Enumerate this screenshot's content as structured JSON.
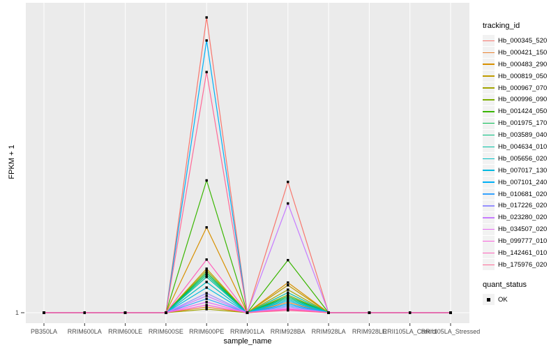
{
  "figure": {
    "panel_bg": "#EBEBEB",
    "grid_color": "#FFFFFF",
    "tick_color": "#333333",
    "axis_text_color": "#4D4D4D"
  },
  "legend": {
    "tracking_title": "tracking_id",
    "quant_title": "quant_status",
    "quant_items": [
      {
        "label": "OK",
        "shape": "filled-square",
        "color": "#000000"
      }
    ]
  },
  "chart_data": {
    "type": "line",
    "title": "",
    "xlabel": "sample_name",
    "ylabel": "FPKM + 1",
    "legend_position": "right",
    "grid": true,
    "y_ticks": [
      {
        "label": "1",
        "value": 0
      }
    ],
    "ylim": [
      0,
      1.05
    ],
    "units": "relative height (fraction of tallest peak; baseline = axis tick '1')",
    "categories": [
      "PB350LA",
      "RRIM600LA",
      "RRIM600LE",
      "RRIM600SE",
      "RRIM600PE",
      "RRIM901LA",
      "RRIM928BA",
      "RRIM928LA",
      "RRIM928LE",
      "RRII105LA_Control",
      "RRII105LA_Stressed"
    ],
    "point_marker": {
      "shape": "filled-square",
      "color": "#000000",
      "legend_label": "OK"
    },
    "series": [
      {
        "name": "Hb_000345_520",
        "color": "#F8766D",
        "values": [
          0,
          0,
          0,
          0,
          1.0,
          0,
          0.443,
          0,
          0,
          0,
          0
        ]
      },
      {
        "name": "Hb_000421_150",
        "color": "#EA8331",
        "values": [
          0,
          0,
          0,
          0,
          0.019,
          0,
          0.035,
          0,
          0,
          0,
          0
        ]
      },
      {
        "name": "Hb_000483_290",
        "color": "#D89000",
        "values": [
          0,
          0,
          0,
          0,
          0.289,
          0,
          0.102,
          0,
          0,
          0,
          0
        ]
      },
      {
        "name": "Hb_000819_050",
        "color": "#C09B00",
        "values": [
          0,
          0,
          0,
          0,
          0.149,
          0,
          0.093,
          0,
          0,
          0,
          0
        ]
      },
      {
        "name": "Hb_000967_070",
        "color": "#A3A500",
        "values": [
          0,
          0,
          0,
          0,
          0.012,
          0,
          0.078,
          0,
          0,
          0,
          0
        ]
      },
      {
        "name": "Hb_000996_090",
        "color": "#7CAE00",
        "values": [
          0,
          0,
          0,
          0,
          0.142,
          0,
          0.06,
          0,
          0,
          0,
          0
        ]
      },
      {
        "name": "Hb_001424_050",
        "color": "#39B600",
        "values": [
          0,
          0,
          0,
          0,
          0.448,
          0,
          0.178,
          0,
          0,
          0,
          0
        ]
      },
      {
        "name": "Hb_001975_170",
        "color": "#00BB4E",
        "values": [
          0,
          0,
          0,
          0,
          0.135,
          0,
          0.055,
          0,
          0,
          0,
          0
        ]
      },
      {
        "name": "Hb_003589_040",
        "color": "#00BF7D",
        "values": [
          0,
          0,
          0,
          0,
          0.128,
          0,
          0.05,
          0,
          0,
          0,
          0
        ]
      },
      {
        "name": "Hb_004634_010",
        "color": "#00C1A3",
        "values": [
          0,
          0,
          0,
          0,
          0.121,
          0,
          0.068,
          0,
          0,
          0,
          0
        ]
      },
      {
        "name": "Hb_005656_020",
        "color": "#00BFC4",
        "values": [
          0,
          0,
          0,
          0,
          0.104,
          0,
          0.045,
          0,
          0,
          0,
          0
        ]
      },
      {
        "name": "Hb_007017_130",
        "color": "#00BAE0",
        "values": [
          0,
          0,
          0,
          0,
          0.085,
          0,
          0.04,
          0,
          0,
          0,
          0
        ]
      },
      {
        "name": "Hb_007101_240",
        "color": "#00B0F6",
        "values": [
          0,
          0,
          0,
          0,
          0.922,
          0,
          0.03,
          0,
          0,
          0,
          0
        ]
      },
      {
        "name": "Hb_010681_020",
        "color": "#35A2FF",
        "values": [
          0,
          0,
          0,
          0,
          0.047,
          0,
          0.025,
          0,
          0,
          0,
          0
        ]
      },
      {
        "name": "Hb_017226_020",
        "color": "#9590FF",
        "values": [
          0,
          0,
          0,
          0,
          0.066,
          0,
          0.02,
          0,
          0,
          0,
          0
        ]
      },
      {
        "name": "Hb_023280_020",
        "color": "#C77CFF",
        "values": [
          0,
          0,
          0,
          0,
          0.057,
          0,
          0.37,
          0,
          0,
          0,
          0
        ]
      },
      {
        "name": "Hb_034507_020",
        "color": "#E76BF3",
        "values": [
          0,
          0,
          0,
          0,
          0.036,
          0,
          0.015,
          0,
          0,
          0,
          0
        ]
      },
      {
        "name": "Hb_099777_010",
        "color": "#FA62DB",
        "values": [
          0,
          0,
          0,
          0,
          0.026,
          0,
          0.01,
          0,
          0,
          0,
          0
        ]
      },
      {
        "name": "Hb_142461_010",
        "color": "#FF62BC",
        "values": [
          0,
          0,
          0,
          0,
          0.18,
          0,
          0.012,
          0,
          0,
          0,
          0
        ]
      },
      {
        "name": "Hb_175976_020",
        "color": "#FF6A98",
        "values": [
          0,
          0,
          0,
          0,
          0.815,
          0,
          0.008,
          0,
          0,
          0,
          0
        ]
      }
    ]
  }
}
